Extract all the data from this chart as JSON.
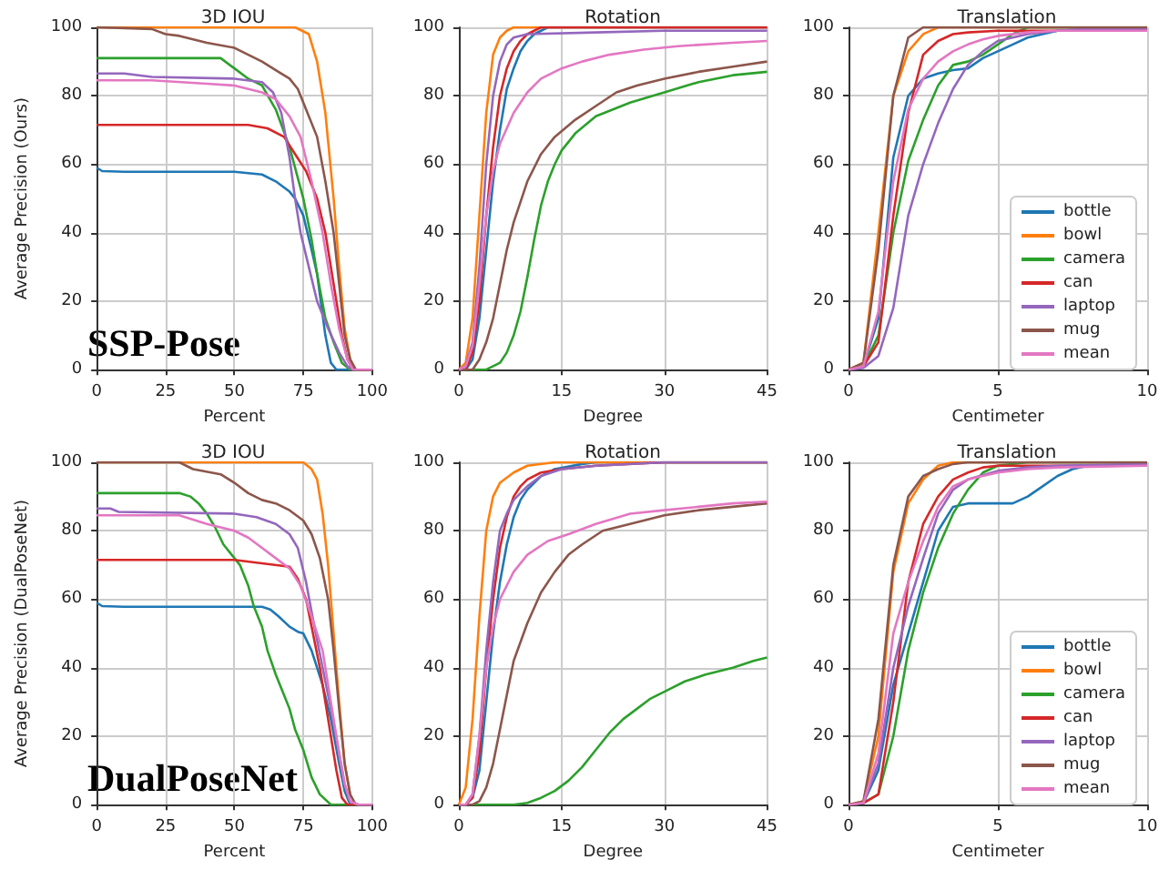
{
  "chart_data": [
    {
      "type": "line",
      "title": "3D IOU",
      "xlabel": "Percent",
      "ylabel": "Average Precision (Ours)",
      "xlim": [
        0,
        100
      ],
      "xticks": [
        0,
        25,
        50,
        75,
        100
      ],
      "ylim": [
        0,
        100
      ],
      "yticks": [
        0,
        20,
        40,
        60,
        80,
        100
      ],
      "grid": true,
      "annotations": [
        "SSP-Pose"
      ],
      "series": [
        {
          "color": "#1f77b4",
          "x": [
            0,
            2,
            10,
            50,
            60,
            65,
            70,
            72,
            75,
            78,
            80,
            83,
            85,
            87,
            100
          ],
          "values": [
            59,
            58,
            57.8,
            57.8,
            57,
            55,
            52,
            50,
            45,
            35,
            28,
            10,
            2,
            0,
            0
          ]
        },
        {
          "color": "#ff7f0e",
          "x": [
            0,
            72,
            77,
            80,
            83,
            86,
            88,
            90,
            92,
            94,
            100
          ],
          "values": [
            100,
            100,
            98,
            90,
            75,
            50,
            30,
            12,
            3,
            0,
            0
          ]
        },
        {
          "color": "#2ca02c",
          "x": [
            0,
            45,
            50,
            55,
            60,
            65,
            70,
            75,
            78,
            80,
            83,
            86,
            89,
            92,
            100
          ],
          "values": [
            91,
            91,
            88,
            85,
            83,
            76,
            65,
            50,
            38,
            28,
            15,
            8,
            2,
            0,
            0
          ]
        },
        {
          "color": "#d62728",
          "x": [
            0,
            55,
            62,
            68,
            72,
            76,
            80,
            83,
            86,
            89,
            91,
            93,
            100
          ],
          "values": [
            71.5,
            71.5,
            70.5,
            68,
            63,
            58,
            50,
            40,
            25,
            10,
            3,
            0,
            0
          ]
        },
        {
          "color": "#9467bd",
          "x": [
            0,
            10,
            20,
            50,
            60,
            64,
            67,
            70,
            72,
            74,
            77,
            80,
            84,
            88,
            91,
            93,
            100
          ],
          "values": [
            86.5,
            86.5,
            85.5,
            85,
            84,
            81,
            75,
            62,
            50,
            40,
            30,
            20,
            12,
            5,
            1,
            0,
            0
          ]
        },
        {
          "color": "#8c564b",
          "x": [
            0,
            20,
            25,
            30,
            40,
            50,
            55,
            60,
            65,
            70,
            73,
            76,
            80,
            83,
            86,
            88,
            90,
            92,
            94,
            100
          ],
          "values": [
            100,
            99.5,
            98,
            97.5,
            95.5,
            94,
            92,
            90,
            87.5,
            85,
            82,
            76,
            68,
            55,
            40,
            25,
            10,
            3,
            0,
            0
          ]
        },
        {
          "color": "#e377c2",
          "x": [
            0,
            20,
            40,
            50,
            60,
            65,
            70,
            74,
            78,
            82,
            85,
            88,
            91,
            93,
            100
          ],
          "values": [
            84.5,
            84.5,
            83.5,
            83,
            81,
            79,
            74,
            68,
            55,
            40,
            25,
            12,
            3,
            0,
            0
          ]
        }
      ]
    },
    {
      "type": "line",
      "title": "Rotation",
      "xlabel": "Degree",
      "xlim": [
        0,
        45
      ],
      "xticks": [
        0,
        15,
        30,
        45
      ],
      "ylim": [
        0,
        100
      ],
      "yticks": [
        0,
        20,
        40,
        60,
        80,
        100
      ],
      "grid": true,
      "series": [
        {
          "color": "#1f77b4",
          "x": [
            0,
            1,
            2,
            3,
            4,
            5,
            6,
            7,
            8,
            9,
            10,
            11,
            13,
            45
          ],
          "values": [
            0,
            0,
            3,
            15,
            35,
            55,
            70,
            82,
            88,
            93,
            96,
            98,
            100,
            100
          ]
        },
        {
          "color": "#ff7f0e",
          "x": [
            0,
            1,
            2,
            3,
            4,
            5,
            6,
            7,
            8,
            45
          ],
          "values": [
            0,
            2,
            15,
            45,
            75,
            92,
            97,
            99,
            100,
            100
          ]
        },
        {
          "color": "#2ca02c",
          "x": [
            0,
            4,
            6,
            7,
            8,
            9,
            10,
            11,
            12,
            13,
            14,
            15,
            17,
            20,
            25,
            30,
            35,
            40,
            45
          ],
          "values": [
            0,
            0,
            2,
            5,
            10,
            17,
            27,
            38,
            48,
            55,
            60,
            64,
            69,
            74,
            78,
            81,
            84,
            86,
            87
          ]
        },
        {
          "color": "#d62728",
          "x": [
            0,
            1,
            2,
            3,
            4,
            5,
            6,
            7,
            8,
            9,
            10,
            12,
            45
          ],
          "values": [
            0,
            0,
            5,
            20,
            45,
            65,
            80,
            88,
            93,
            96,
            98,
            100,
            100
          ]
        },
        {
          "color": "#9467bd",
          "x": [
            0,
            1,
            2,
            3,
            4,
            5,
            6,
            7,
            8,
            10,
            20,
            30,
            45
          ],
          "values": [
            0,
            1,
            8,
            30,
            60,
            80,
            90,
            95,
            97,
            98,
            98.5,
            99,
            99
          ]
        },
        {
          "color": "#8c564b",
          "x": [
            0,
            2,
            3,
            4,
            5,
            6,
            7,
            8,
            10,
            12,
            14,
            17,
            20,
            23,
            26,
            30,
            35,
            40,
            45
          ],
          "values": [
            0,
            0,
            3,
            8,
            15,
            25,
            35,
            43,
            55,
            63,
            68,
            73,
            77,
            81,
            83,
            85,
            87,
            88.5,
            90
          ]
        },
        {
          "color": "#e377c2",
          "x": [
            0,
            1,
            2,
            3,
            4,
            5,
            6,
            8,
            10,
            12,
            15,
            18,
            22,
            27,
            32,
            40,
            45
          ],
          "values": [
            0,
            1,
            7,
            25,
            45,
            58,
            66,
            75,
            81,
            85,
            88,
            90,
            92,
            93.5,
            94.5,
            95.5,
            96
          ]
        }
      ]
    },
    {
      "type": "line",
      "title": "Translation",
      "xlabel": "Centimeter",
      "xlim": [
        0,
        10
      ],
      "xticks": [
        0,
        5,
        10
      ],
      "ylim": [
        0,
        100
      ],
      "yticks": [
        0,
        20,
        40,
        60,
        80,
        100
      ],
      "grid": true,
      "legend": "bottom right",
      "series": [
        {
          "name": "bottle",
          "color": "#1f77b4",
          "x": [
            0,
            0.5,
            1,
            1.5,
            2,
            2.5,
            3,
            3.5,
            4,
            4.5,
            5,
            5.5,
            6,
            7,
            8,
            10
          ],
          "values": [
            0,
            1,
            15,
            62,
            80,
            85,
            86.5,
            87.5,
            88,
            91,
            93,
            95,
            97,
            99,
            99.5,
            99.5
          ]
        },
        {
          "name": "bowl",
          "color": "#ff7f0e",
          "x": [
            0,
            0.5,
            1,
            1.5,
            2,
            2.5,
            3,
            10
          ],
          "values": [
            0,
            2,
            40,
            80,
            93,
            98,
            100,
            100
          ]
        },
        {
          "name": "camera",
          "color": "#2ca02c",
          "x": [
            0,
            0.5,
            1,
            1.5,
            2,
            2.5,
            3,
            3.5,
            4,
            4.5,
            5,
            5.5,
            6,
            10
          ],
          "values": [
            0,
            1,
            10,
            40,
            61,
            73,
            83,
            89,
            90,
            92,
            95,
            98,
            100,
            100
          ]
        },
        {
          "name": "can",
          "color": "#d62728",
          "x": [
            0,
            0.5,
            1,
            1.5,
            2,
            2.5,
            3,
            3.5,
            4,
            5,
            10
          ],
          "values": [
            0,
            1,
            8,
            45,
            75,
            92,
            96,
            98,
            98.5,
            99,
            99
          ]
        },
        {
          "name": "laptop",
          "color": "#9467bd",
          "x": [
            0,
            0.5,
            1,
            1.5,
            2,
            2.5,
            3,
            3.5,
            4,
            4.5,
            5,
            6,
            7,
            8,
            10
          ],
          "values": [
            0,
            0.5,
            4,
            18,
            45,
            60,
            72,
            82,
            89,
            93,
            96,
            98,
            99,
            99.5,
            99.5
          ]
        },
        {
          "name": "mug",
          "color": "#8c564b",
          "x": [
            0,
            0.5,
            1,
            1.5,
            2,
            2.5,
            10
          ],
          "values": [
            0,
            2,
            35,
            80,
            97,
            100,
            100
          ]
        },
        {
          "name": "mean",
          "color": "#e377c2",
          "x": [
            0,
            0.5,
            1,
            1.5,
            2,
            2.5,
            3,
            3.5,
            4,
            4.5,
            5,
            6,
            7,
            10
          ],
          "values": [
            0,
            1,
            17,
            55,
            76,
            85,
            90,
            93,
            95,
            96.5,
            97.5,
            98.5,
            99,
            99
          ]
        }
      ]
    },
    {
      "type": "line",
      "title": "3D IOU",
      "xlabel": "Percent",
      "ylabel": "Average Precision (DualPoseNet)",
      "xlim": [
        0,
        100
      ],
      "xticks": [
        0,
        25,
        50,
        75,
        100
      ],
      "ylim": [
        0,
        100
      ],
      "yticks": [
        0,
        20,
        40,
        60,
        80,
        100
      ],
      "grid": true,
      "annotations": [
        "DualPoseNet"
      ],
      "series": [
        {
          "color": "#1f77b4",
          "x": [
            0,
            2,
            10,
            60,
            63,
            66,
            70,
            73,
            75,
            78,
            82,
            85,
            88,
            90,
            92,
            100
          ],
          "values": [
            59,
            58,
            57.8,
            57.8,
            57,
            55,
            52,
            50.5,
            50,
            45,
            35,
            25,
            12,
            4,
            0,
            0
          ]
        },
        {
          "color": "#ff7f0e",
          "x": [
            0,
            75,
            78,
            80,
            82,
            84,
            86,
            88,
            90,
            92
          ],
          "values": [
            100,
            100,
            98,
            95,
            85,
            70,
            50,
            30,
            12,
            3
          ]
        },
        {
          "color": "#2ca02c",
          "x": [
            0,
            30,
            34,
            37,
            40,
            43,
            46,
            49,
            52,
            55,
            57,
            60,
            62,
            65,
            68,
            70,
            72,
            75,
            78,
            81,
            85,
            100
          ],
          "values": [
            91,
            91,
            90,
            88,
            85,
            81,
            76,
            73,
            70,
            64,
            58,
            52,
            45,
            38,
            32,
            28,
            22,
            16,
            8,
            3,
            0,
            0
          ]
        },
        {
          "color": "#d62728",
          "x": [
            0,
            50,
            60,
            70,
            73,
            76,
            78,
            81,
            84,
            87,
            89,
            91,
            100
          ],
          "values": [
            71.5,
            71.5,
            70.5,
            69.5,
            66,
            60,
            52,
            40,
            25,
            10,
            2,
            0,
            0
          ]
        },
        {
          "color": "#9467bd",
          "x": [
            0,
            5,
            8,
            50,
            58,
            65,
            70,
            73,
            76,
            79,
            82,
            85,
            88,
            90,
            92,
            95,
            100
          ],
          "values": [
            86.5,
            86.5,
            85.5,
            85,
            84,
            82,
            79,
            75,
            65,
            52,
            40,
            28,
            15,
            6,
            1,
            0,
            0
          ]
        },
        {
          "color": "#8c564b",
          "x": [
            0,
            30,
            35,
            45,
            50,
            55,
            60,
            65,
            70,
            75,
            78,
            81,
            84,
            86,
            88,
            90,
            92,
            94,
            100
          ],
          "values": [
            100,
            100,
            98,
            96.5,
            94,
            91,
            89,
            88,
            86,
            83,
            79,
            72,
            60,
            45,
            28,
            12,
            3,
            0,
            0
          ]
        },
        {
          "color": "#e377c2",
          "x": [
            0,
            30,
            40,
            50,
            55,
            60,
            65,
            70,
            74,
            78,
            82,
            85,
            88,
            90,
            92,
            95,
            100
          ],
          "values": [
            84.5,
            84.5,
            82,
            80,
            78,
            75,
            72,
            69,
            64,
            55,
            45,
            30,
            15,
            6,
            1,
            0,
            0
          ]
        }
      ]
    },
    {
      "type": "line",
      "title": "Rotation",
      "xlabel": "Degree",
      "xlim": [
        0,
        45
      ],
      "xticks": [
        0,
        15,
        30,
        45
      ],
      "ylim": [
        0,
        100
      ],
      "yticks": [
        0,
        20,
        40,
        60,
        80,
        100
      ],
      "grid": true,
      "series": [
        {
          "color": "#1f77b4",
          "x": [
            0,
            1,
            2,
            3,
            4,
            5,
            6,
            7,
            8,
            9,
            10,
            12,
            14,
            18,
            20,
            45
          ],
          "values": [
            0,
            0,
            2,
            10,
            30,
            50,
            65,
            76,
            84,
            89,
            92,
            96,
            98,
            99.5,
            100,
            100
          ]
        },
        {
          "color": "#ff7f0e",
          "x": [
            0,
            1,
            2,
            3,
            4,
            5,
            6,
            8,
            10,
            14,
            45
          ],
          "values": [
            0,
            5,
            25,
            55,
            80,
            90,
            94,
            97,
            99,
            100,
            100
          ]
        },
        {
          "color": "#2ca02c",
          "x": [
            0,
            8,
            10,
            12,
            14,
            16,
            18,
            20,
            22,
            24,
            26,
            28,
            30,
            33,
            36,
            40,
            43,
            45
          ],
          "values": [
            0,
            0,
            0.5,
            2,
            4,
            7,
            11,
            16,
            21,
            25,
            28,
            31,
            33,
            36,
            38,
            40,
            42,
            43
          ]
        },
        {
          "color": "#d62728",
          "x": [
            0,
            1,
            2,
            3,
            4,
            5,
            6,
            7,
            8,
            9,
            10,
            12,
            15,
            20,
            30,
            45
          ],
          "values": [
            0,
            0,
            2,
            15,
            40,
            60,
            75,
            84,
            90,
            93,
            95,
            97,
            98,
            99,
            100,
            100
          ]
        },
        {
          "color": "#9467bd",
          "x": [
            0,
            1,
            2,
            3,
            4,
            5,
            6,
            7,
            8,
            10,
            12,
            15,
            20,
            30,
            45
          ],
          "values": [
            0,
            0,
            3,
            20,
            45,
            65,
            80,
            85,
            89,
            93,
            96,
            98,
            99,
            100,
            100
          ]
        },
        {
          "color": "#8c564b",
          "x": [
            0,
            2,
            3,
            4,
            5,
            6,
            7,
            8,
            10,
            12,
            14,
            16,
            18,
            21,
            25,
            30,
            35,
            40,
            45
          ],
          "values": [
            0,
            0,
            1,
            5,
            12,
            22,
            32,
            42,
            53,
            62,
            68,
            73,
            76,
            80,
            82,
            84.5,
            86,
            87,
            88
          ]
        },
        {
          "color": "#e377c2",
          "x": [
            0,
            1,
            2,
            3,
            4,
            5,
            6,
            8,
            10,
            13,
            16,
            20,
            25,
            30,
            35,
            40,
            45
          ],
          "values": [
            0,
            0,
            3,
            20,
            40,
            52,
            60,
            68,
            73,
            77,
            79,
            82,
            85,
            86,
            87,
            88,
            88.5
          ]
        }
      ]
    },
    {
      "type": "line",
      "title": "Translation",
      "xlabel": "Centimeter",
      "xlim": [
        0,
        10
      ],
      "xticks": [
        0,
        5,
        10
      ],
      "ylim": [
        0,
        100
      ],
      "yticks": [
        0,
        20,
        40,
        60,
        80,
        100
      ],
      "grid": true,
      "legend": "bottom right",
      "series": [
        {
          "name": "bottle",
          "color": "#1f77b4",
          "x": [
            0,
            0.5,
            1,
            1.5,
            2,
            2.5,
            3,
            3.5,
            4,
            5,
            5.5,
            6,
            6.5,
            7,
            7.5,
            8,
            10
          ],
          "values": [
            0,
            0.5,
            10,
            35,
            50,
            65,
            80,
            87,
            88,
            88,
            88,
            90,
            93,
            96,
            98,
            99,
            99
          ]
        },
        {
          "name": "bowl",
          "color": "#ff7f0e",
          "x": [
            0,
            0.5,
            1,
            1.5,
            2,
            2.5,
            3,
            3.5,
            10
          ],
          "values": [
            0,
            1,
            20,
            68,
            88,
            95,
            99,
            100,
            100
          ]
        },
        {
          "name": "camera",
          "color": "#2ca02c",
          "x": [
            0,
            0.5,
            1,
            1.5,
            2,
            2.5,
            3,
            3.5,
            4,
            4.5,
            5,
            6,
            10
          ],
          "values": [
            0,
            0.5,
            3,
            20,
            45,
            62,
            75,
            85,
            92,
            97,
            99,
            100,
            100
          ]
        },
        {
          "name": "can",
          "color": "#d62728",
          "x": [
            0,
            0.5,
            1,
            1.5,
            2,
            2.5,
            3,
            3.5,
            4,
            4.5,
            5,
            10
          ],
          "values": [
            0,
            0.5,
            3,
            30,
            65,
            82,
            90,
            95,
            97,
            98.5,
            99,
            99
          ]
        },
        {
          "name": "laptop",
          "color": "#9467bd",
          "x": [
            0,
            0.5,
            1,
            1.5,
            2,
            2.5,
            3,
            3.5,
            4,
            5,
            6,
            7,
            10
          ],
          "values": [
            0,
            0.5,
            12,
            40,
            58,
            72,
            85,
            92,
            95,
            97.5,
            98.5,
            99,
            99.5
          ]
        },
        {
          "name": "mug",
          "color": "#8c564b",
          "x": [
            0,
            0.5,
            1,
            1.5,
            2,
            2.5,
            3,
            3.5,
            4,
            10
          ],
          "values": [
            0,
            1,
            25,
            70,
            90,
            96,
            98,
            99.5,
            100,
            100
          ]
        },
        {
          "name": "mean",
          "color": "#e377c2",
          "x": [
            0,
            0.5,
            1,
            1.5,
            2,
            2.5,
            3,
            3.5,
            4,
            5,
            6,
            7,
            10
          ],
          "values": [
            0,
            0.5,
            15,
            50,
            65,
            77,
            87,
            93,
            95,
            97,
            98,
            98.5,
            99
          ]
        }
      ]
    }
  ]
}
